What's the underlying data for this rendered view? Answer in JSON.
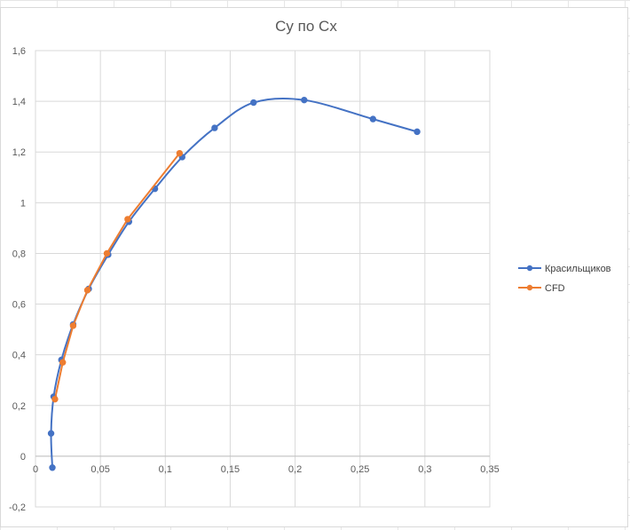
{
  "chart_data": {
    "type": "scatter",
    "title": "Cy по Cx",
    "xlabel": "",
    "ylabel": "",
    "xlim": [
      0,
      0.35
    ],
    "ylim": [
      -0.2,
      1.6
    ],
    "x_ticks": [
      "0",
      "0,05",
      "0,1",
      "0,15",
      "0,2",
      "0,25",
      "0,3",
      "0,35"
    ],
    "y_ticks": [
      "-0,2",
      "0",
      "0,2",
      "0,4",
      "0,6",
      "0,8",
      "1",
      "1,2",
      "1,4",
      "1,6"
    ],
    "grid": true,
    "legend": "right",
    "series": [
      {
        "name": "Красильщиков",
        "color": "#4472c4",
        "smooth": true,
        "points": [
          [
            0.013,
            -0.045
          ],
          [
            0.012,
            0.09
          ],
          [
            0.014,
            0.235
          ],
          [
            0.02,
            0.38
          ],
          [
            0.029,
            0.52
          ],
          [
            0.041,
            0.66
          ],
          [
            0.056,
            0.795
          ],
          [
            0.072,
            0.925
          ],
          [
            0.092,
            1.055
          ],
          [
            0.113,
            1.18
          ],
          [
            0.138,
            1.295
          ],
          [
            0.168,
            1.395
          ],
          [
            0.207,
            1.405
          ],
          [
            0.26,
            1.33
          ],
          [
            0.294,
            1.28
          ]
        ]
      },
      {
        "name": "CFD",
        "color": "#ed7d31",
        "smooth": false,
        "points": [
          [
            0.015,
            0.225
          ],
          [
            0.021,
            0.37
          ],
          [
            0.029,
            0.515
          ],
          [
            0.04,
            0.655
          ],
          [
            0.055,
            0.8
          ],
          [
            0.071,
            0.935
          ],
          [
            0.111,
            1.195
          ]
        ]
      }
    ]
  }
}
